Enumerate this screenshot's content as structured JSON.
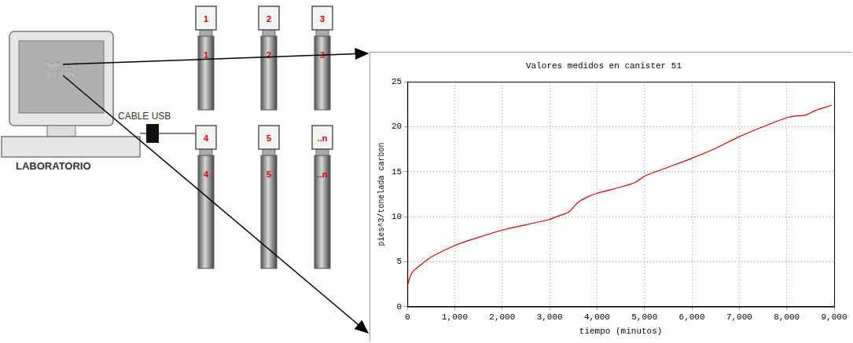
{
  "diagram": {
    "computer": {
      "screen_text": "Software CGMS",
      "label": "LABORATORIO"
    },
    "cable": {
      "label": "CABLE USB"
    },
    "canisters": [
      {
        "label": "1"
      },
      {
        "label": "2"
      },
      {
        "label": "3"
      },
      {
        "label": "4"
      },
      {
        "label": "5"
      },
      {
        "label": "..n"
      }
    ]
  },
  "chart_data": {
    "type": "line",
    "title": "Valores medidos en canister 51",
    "x_label": "tiempo (minutos)",
    "y_label": "pies^3/tonelada carbon",
    "x": [
      0,
      100,
      250,
      500,
      1000,
      1500,
      2000,
      2500,
      3000,
      3200,
      3400,
      3600,
      3800,
      4000,
      4500,
      4800,
      5000,
      5500,
      6000,
      6500,
      7000,
      7500,
      8000,
      8200,
      8400,
      8600,
      8950
    ],
    "series": [
      {
        "name": "canister 51",
        "color": "#cc0000",
        "values": [
          2.4,
          3.8,
          4.5,
          5.5,
          6.8,
          7.7,
          8.5,
          9.1,
          9.7,
          10.1,
          10.5,
          11.6,
          12.2,
          12.6,
          13.3,
          13.8,
          14.5,
          15.5,
          16.5,
          17.6,
          18.9,
          20.0,
          21.0,
          21.2,
          21.3,
          21.8,
          22.4
        ]
      }
    ],
    "xlim": [
      0,
      9000
    ],
    "xticks": [
      0,
      1000,
      2000,
      3000,
      4000,
      5000,
      6000,
      7000,
      8000,
      9000
    ],
    "ylim": [
      0,
      25
    ],
    "yticks": [
      0,
      5,
      10,
      15,
      20,
      25
    ],
    "grid": true
  }
}
